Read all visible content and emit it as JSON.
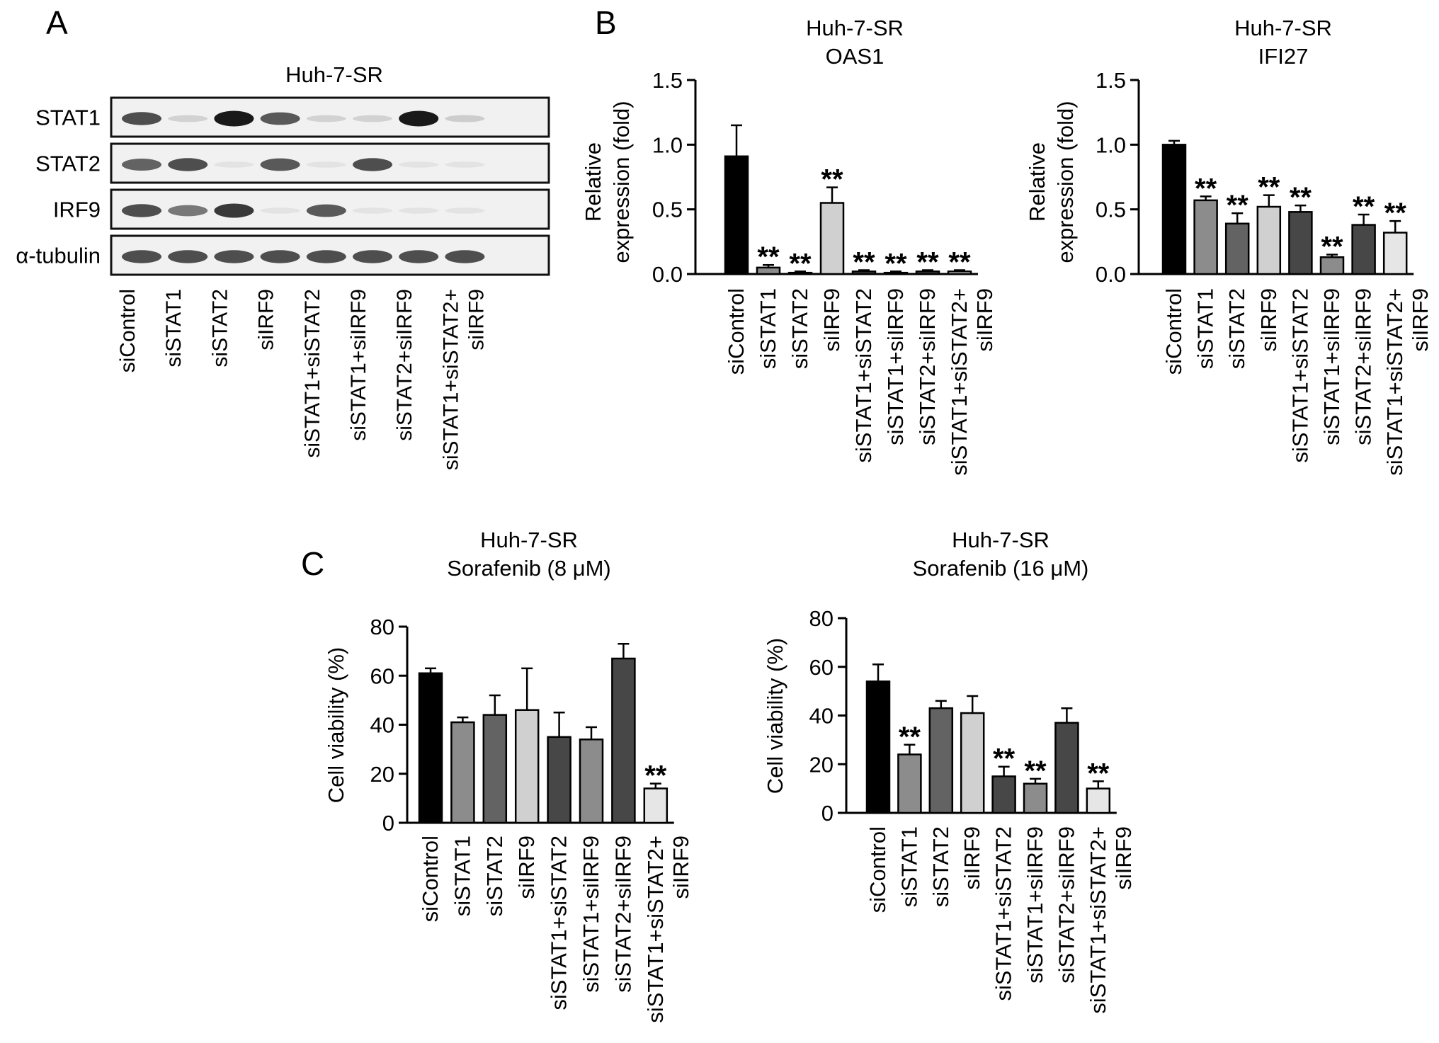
{
  "panels": [
    {
      "letter": "A"
    },
    {
      "letter": "B"
    },
    {
      "letter": "C"
    }
  ],
  "western_blot": {
    "title": "Huh-7-SR",
    "rows": [
      "STAT1",
      "STAT2",
      "IRF9",
      "α-tubulin"
    ],
    "lanes": [
      [
        "siControl"
      ],
      [
        "siSTAT1"
      ],
      [
        "siSTAT2"
      ],
      [
        "siIRF9"
      ],
      [
        "siSTAT1+siSTAT2"
      ],
      [
        "siSTAT1+siIRF9"
      ],
      [
        "siSTAT2+siIRF9"
      ],
      [
        "siSTAT1+siSTAT2+",
        "siIRF9"
      ]
    ],
    "band_intensity": [
      [
        0.75,
        0.12,
        1.0,
        0.7,
        0.12,
        0.12,
        1.0,
        0.15
      ],
      [
        0.65,
        0.75,
        0.04,
        0.7,
        0.04,
        0.75,
        0.04,
        0.04
      ],
      [
        0.75,
        0.55,
        0.85,
        0.04,
        0.7,
        0.04,
        0.04,
        0.04
      ],
      [
        0.75,
        0.75,
        0.75,
        0.75,
        0.75,
        0.75,
        0.75,
        0.75
      ]
    ]
  },
  "chart_data": [
    {
      "type": "bar",
      "title": [
        "Huh-7-SR",
        "OAS1"
      ],
      "ylabel": [
        "Relative",
        "expression (fold)"
      ],
      "xlabel": "",
      "ylim": [
        0,
        1.5
      ],
      "yticks": [
        "0.0",
        "0.5",
        "1.0",
        "1.5"
      ],
      "categories": [
        [
          "siControl"
        ],
        [
          "siSTAT1"
        ],
        [
          "siSTAT2"
        ],
        [
          "siIRF9"
        ],
        [
          "siSTAT1+siSTAT2"
        ],
        [
          "siSTAT1+siIRF9"
        ],
        [
          "siSTAT2+siIRF9"
        ],
        [
          "siSTAT1+siSTAT2+",
          "siIRF9"
        ]
      ],
      "values": [
        0.91,
        0.05,
        0.01,
        0.55,
        0.02,
        0.01,
        0.02,
        0.02
      ],
      "errors": [
        0.24,
        0.02,
        0.01,
        0.12,
        0.01,
        0.01,
        0.01,
        0.01
      ],
      "colors": [
        "#000000",
        "#8c8c8c",
        "#636363",
        "#d0d0d0",
        "#474747",
        "#8c8c8c",
        "#474747",
        "#e6e6e6"
      ],
      "significance": [
        "",
        "**",
        "**",
        "**",
        "**",
        "**",
        "**",
        "**"
      ]
    },
    {
      "type": "bar",
      "title": [
        "Huh-7-SR",
        "IFI27"
      ],
      "ylabel": [
        "Relative",
        "expression (fold)"
      ],
      "xlabel": "",
      "ylim": [
        0,
        1.5
      ],
      "yticks": [
        "0.0",
        "0.5",
        "1.0",
        "1.5"
      ],
      "categories": [
        [
          "siControl"
        ],
        [
          "siSTAT1"
        ],
        [
          "siSTAT2"
        ],
        [
          "siIRF9"
        ],
        [
          "siSTAT1+siSTAT2"
        ],
        [
          "siSTAT1+siIRF9"
        ],
        [
          "siSTAT2+siIRF9"
        ],
        [
          "siSTAT1+siSTAT2+",
          "siIRF9"
        ]
      ],
      "values": [
        1.0,
        0.57,
        0.39,
        0.52,
        0.48,
        0.13,
        0.38,
        0.32
      ],
      "errors": [
        0.03,
        0.03,
        0.08,
        0.09,
        0.05,
        0.02,
        0.08,
        0.09
      ],
      "colors": [
        "#000000",
        "#8c8c8c",
        "#636363",
        "#d0d0d0",
        "#474747",
        "#8c8c8c",
        "#474747",
        "#e6e6e6"
      ],
      "significance": [
        "",
        "**",
        "**",
        "**",
        "**",
        "**",
        "**",
        "**"
      ]
    },
    {
      "type": "bar",
      "title": [
        "Huh-7-SR",
        "Sorafenib (8 μM)"
      ],
      "ylabel": [
        "Cell viability (%)"
      ],
      "xlabel": "",
      "ylim": [
        0,
        80
      ],
      "yticks": [
        "0",
        "20",
        "40",
        "60",
        "80"
      ],
      "categories": [
        [
          "siControl"
        ],
        [
          "siSTAT1"
        ],
        [
          "siSTAT2"
        ],
        [
          "siIRF9"
        ],
        [
          "siSTAT1+siSTAT2"
        ],
        [
          "siSTAT1+siIRF9"
        ],
        [
          "siSTAT2+siIRF9"
        ],
        [
          "siSTAT1+siSTAT2+",
          "siIRF9"
        ]
      ],
      "values": [
        61,
        41,
        44,
        46,
        35,
        34,
        67,
        14
      ],
      "errors": [
        2,
        2,
        8,
        17,
        10,
        5,
        6,
        2
      ],
      "colors": [
        "#000000",
        "#8c8c8c",
        "#636363",
        "#d0d0d0",
        "#474747",
        "#8c8c8c",
        "#474747",
        "#e6e6e6"
      ],
      "significance": [
        "",
        "",
        "",
        "",
        "",
        "",
        "",
        "**"
      ]
    },
    {
      "type": "bar",
      "title": [
        "Huh-7-SR",
        "Sorafenib (16 μM)"
      ],
      "ylabel": [
        "Cell viability (%)"
      ],
      "xlabel": "",
      "ylim": [
        0,
        80
      ],
      "yticks": [
        "0",
        "20",
        "40",
        "60",
        "80"
      ],
      "categories": [
        [
          "siControl"
        ],
        [
          "siSTAT1"
        ],
        [
          "siSTAT2"
        ],
        [
          "siIRF9"
        ],
        [
          "siSTAT1+siSTAT2"
        ],
        [
          "siSTAT1+siIRF9"
        ],
        [
          "siSTAT2+siIRF9"
        ],
        [
          "siSTAT1+siSTAT2+",
          "siIRF9"
        ]
      ],
      "values": [
        54,
        24,
        43,
        41,
        15,
        12,
        37,
        10
      ],
      "errors": [
        7,
        4,
        3,
        7,
        4,
        2,
        6,
        3
      ],
      "colors": [
        "#000000",
        "#8c8c8c",
        "#636363",
        "#d0d0d0",
        "#474747",
        "#8c8c8c",
        "#474747",
        "#e6e6e6"
      ],
      "significance": [
        "",
        "**",
        "",
        "",
        "**",
        "**",
        "",
        "**"
      ]
    }
  ]
}
